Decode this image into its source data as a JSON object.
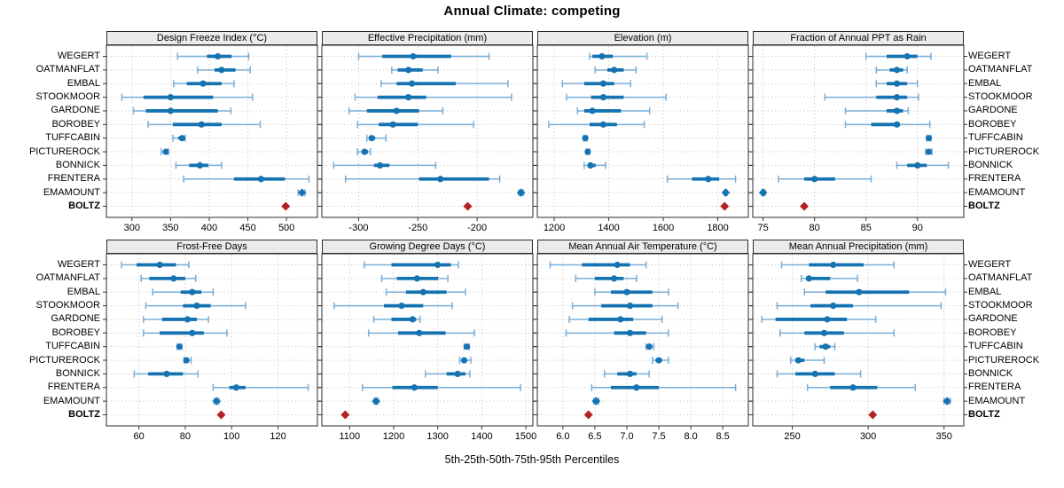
{
  "colors": {
    "blue": "#1673b1",
    "light_blue": "#79aed7",
    "red": "#b22222",
    "strip_bg": "#ebebeb",
    "grid": "#c9c9c9",
    "border": "#2b2b2b",
    "tick": "#333333"
  },
  "chart_data": {
    "type": "dotplot-trellis",
    "title": "Annual Climate: competing",
    "xlabel": "5th-25th-50th-75th-95th Percentiles",
    "percentile_labels": [
      "5th",
      "25th",
      "50th",
      "75th",
      "95th"
    ],
    "legend_note": "BOLTZ shown as single red diamond; EMAMOUNT marker is a diamond",
    "sites": [
      "WEGERT",
      "OATMANFLAT",
      "EMBAL",
      "STOOKMOOR",
      "GARDONE",
      "BOROBEY",
      "TUFFCABIN",
      "PICTUREROCK",
      "BONNICK",
      "FRENTERA",
      "EMAMOUNT",
      "BOLTZ"
    ],
    "diamond_sites": [
      "EMAMOUNT",
      "BOLTZ"
    ],
    "panels": [
      {
        "title": "Design Freeze Index (°C)",
        "ticks": [
          300,
          350,
          400,
          450,
          500
        ],
        "tick_labels": [
          "300",
          "350",
          "400",
          "450",
          "500"
        ],
        "xlim": [
          267,
          540
        ],
        "rows": [
          [
            359,
            397,
            411,
            429,
            451
          ],
          [
            385,
            407,
            416,
            434,
            453
          ],
          [
            354,
            371,
            392,
            416,
            432
          ],
          [
            287,
            315,
            350,
            405,
            456
          ],
          [
            302,
            318,
            350,
            411,
            428
          ],
          [
            321,
            353,
            390,
            416,
            466
          ],
          [
            353,
            360,
            365,
            367,
            369
          ],
          [
            338,
            341,
            344,
            345,
            347
          ],
          [
            357,
            374,
            388,
            399,
            416
          ],
          [
            367,
            432,
            467,
            498,
            529
          ],
          [
            515,
            518,
            520,
            522,
            524
          ],
          499
        ]
      },
      {
        "title": "Effective Precipitation (mm)",
        "ticks": [
          -300,
          -250,
          -200
        ],
        "tick_labels": [
          "-300",
          "-250",
          "-200"
        ],
        "xlim": [
          -331,
          -153
        ],
        "rows": [
          [
            -300,
            -280,
            -254,
            -222,
            -190
          ],
          [
            -272,
            -267,
            -258,
            -246,
            -233
          ],
          [
            -281,
            -268,
            -255,
            -218,
            -174
          ],
          [
            -303,
            -284,
            -258,
            -243,
            -171
          ],
          [
            -308,
            -293,
            -268,
            -249,
            -229
          ],
          [
            -301,
            -283,
            -271,
            -250,
            -203
          ],
          [
            -293,
            -291,
            -289,
            -286,
            -277
          ],
          [
            -301,
            -297,
            -295,
            -292,
            -290
          ],
          [
            -321,
            -287,
            -282,
            -274,
            -235
          ],
          [
            -311,
            -249,
            -231,
            -190,
            -181
          ],
          [
            -165,
            -164,
            -163,
            -162,
            -161
          ],
          -208
        ]
      },
      {
        "title": "Elevation (m)",
        "ticks": [
          1200,
          1400,
          1600,
          1800
        ],
        "tick_labels": [
          "1200",
          "1400",
          "1600",
          "1800"
        ],
        "xlim": [
          1138,
          1912
        ],
        "rows": [
          [
            1330,
            1340,
            1375,
            1415,
            1540
          ],
          [
            1350,
            1395,
            1420,
            1455,
            1500
          ],
          [
            1230,
            1310,
            1380,
            1420,
            1480
          ],
          [
            1245,
            1335,
            1380,
            1455,
            1610
          ],
          [
            1285,
            1310,
            1340,
            1445,
            1550
          ],
          [
            1180,
            1330,
            1380,
            1430,
            1530
          ],
          [
            1308,
            1311,
            1314,
            1317,
            1320
          ],
          [
            1317,
            1320,
            1323,
            1326,
            1329
          ],
          [
            1310,
            1324,
            1333,
            1352,
            1388
          ],
          [
            1615,
            1705,
            1765,
            1805,
            1865
          ],
          [
            1824,
            1826,
            1829,
            1831,
            1833
          ],
          1825
        ]
      },
      {
        "title": "Fraction of Annual PPT as Rain",
        "ticks": [
          75,
          80,
          85,
          90
        ],
        "tick_labels": [
          "75",
          "80",
          "85",
          "90"
        ],
        "xlim": [
          74,
          94.5
        ],
        "rows": [
          [
            85,
            87,
            89,
            90,
            91.3
          ],
          [
            86,
            87.3,
            88,
            88.6,
            89
          ],
          [
            86,
            87,
            88,
            89,
            90
          ],
          [
            81,
            86,
            88,
            89,
            90.1
          ],
          [
            83,
            87,
            88,
            88.6,
            89.1
          ],
          [
            83,
            85.5,
            88,
            88.3,
            91.2
          ],
          [
            90.9,
            91,
            91.1,
            91.2,
            91.3
          ],
          [
            90.8,
            91,
            91.1,
            91.2,
            91.4
          ],
          [
            88,
            89,
            90,
            90.9,
            93
          ],
          [
            76.5,
            79,
            80,
            82,
            85.5
          ],
          [
            74.9,
            75,
            75,
            75.1,
            75.2
          ],
          79
        ]
      },
      {
        "title": "Frost-Free Days",
        "ticks": [
          60,
          80,
          100,
          120
        ],
        "tick_labels": [
          "60",
          "80",
          "100",
          "120"
        ],
        "xlim": [
          46,
          137
        ],
        "rows": [
          [
            52.5,
            59,
            69,
            76,
            81.5
          ],
          [
            61,
            64.5,
            75,
            80,
            84.5
          ],
          [
            66,
            78,
            83,
            87,
            92
          ],
          [
            63,
            79,
            85,
            91,
            106
          ],
          [
            62,
            70,
            81,
            85,
            90
          ],
          [
            62,
            69,
            83,
            88,
            98
          ],
          [
            76.5,
            77,
            77.5,
            78,
            78.5
          ],
          [
            79.5,
            80,
            80.5,
            81.5,
            82.5
          ],
          [
            58,
            64,
            72,
            79,
            85.5
          ],
          [
            92,
            99,
            102,
            106,
            133
          ],
          [
            92.5,
            93,
            93.5,
            94,
            94.5
          ],
          95.5
        ]
      },
      {
        "title": "Growing Degree Days (°C)",
        "ticks": [
          1100,
          1200,
          1300,
          1400,
          1500
        ],
        "tick_labels": [
          "1100",
          "1200",
          "1300",
          "1400",
          "1500"
        ],
        "xlim": [
          1037,
          1516
        ],
        "rows": [
          [
            1133,
            1195,
            1300,
            1330,
            1347
          ],
          [
            1173,
            1207,
            1253,
            1301,
            1323
          ],
          [
            1183,
            1228,
            1267,
            1320,
            1363
          ],
          [
            1065,
            1178,
            1218,
            1267,
            1333
          ],
          [
            1155,
            1195,
            1243,
            1251,
            1260
          ],
          [
            1143,
            1210,
            1258,
            1318,
            1383
          ],
          [
            1360,
            1363,
            1366,
            1369,
            1372
          ],
          [
            1350,
            1355,
            1360,
            1366,
            1375
          ],
          [
            1272,
            1320,
            1345,
            1363,
            1373
          ],
          [
            1129,
            1197,
            1247,
            1300,
            1488
          ],
          [
            1155,
            1158,
            1160,
            1162,
            1165
          ],
          1090
        ]
      },
      {
        "title": "Mean Annual Air Temperature (°C)",
        "ticks": [
          6.0,
          6.5,
          7.0,
          7.5,
          8.0,
          8.5
        ],
        "tick_labels": [
          "6.0",
          "6.5",
          "7.0",
          "7.5",
          "8.0",
          "8.5"
        ],
        "xlim": [
          5.6,
          8.9
        ],
        "rows": [
          [
            5.8,
            6.3,
            6.85,
            7.05,
            7.3
          ],
          [
            6.2,
            6.5,
            6.8,
            6.95,
            7.15
          ],
          [
            6.5,
            6.75,
            7.0,
            7.4,
            7.65
          ],
          [
            6.15,
            6.6,
            7.05,
            7.4,
            7.8
          ],
          [
            6.1,
            6.4,
            6.9,
            7.1,
            7.55
          ],
          [
            6.05,
            6.8,
            7.05,
            7.3,
            7.65
          ],
          [
            7.3,
            7.33,
            7.35,
            7.38,
            7.42
          ],
          [
            7.4,
            7.45,
            7.5,
            7.55,
            7.65
          ],
          [
            6.65,
            6.85,
            7.05,
            7.15,
            7.35
          ],
          [
            6.45,
            6.75,
            7.15,
            7.5,
            8.7
          ],
          [
            6.48,
            6.5,
            6.52,
            6.54,
            6.56
          ],
          6.4
        ]
      },
      {
        "title": "Mean Annual Precipitation (mm)",
        "ticks": [
          250,
          300,
          350
        ],
        "tick_labels": [
          "250",
          "300",
          "350"
        ],
        "xlim": [
          224,
          363
        ],
        "rows": [
          [
            243,
            261,
            277,
            297,
            317
          ],
          [
            256,
            259,
            261,
            275,
            293
          ],
          [
            258,
            272,
            294,
            327,
            351
          ],
          [
            240,
            262,
            277,
            290,
            348
          ],
          [
            230,
            239,
            273,
            286,
            305
          ],
          [
            242,
            258,
            271,
            284,
            317
          ],
          [
            265,
            268,
            272,
            275,
            278
          ],
          [
            249,
            252,
            254,
            258,
            271
          ],
          [
            240,
            252,
            265,
            278,
            295
          ],
          [
            260,
            275,
            290,
            306,
            331
          ],
          [
            350,
            351,
            352,
            353,
            354
          ],
          303
        ]
      }
    ]
  }
}
